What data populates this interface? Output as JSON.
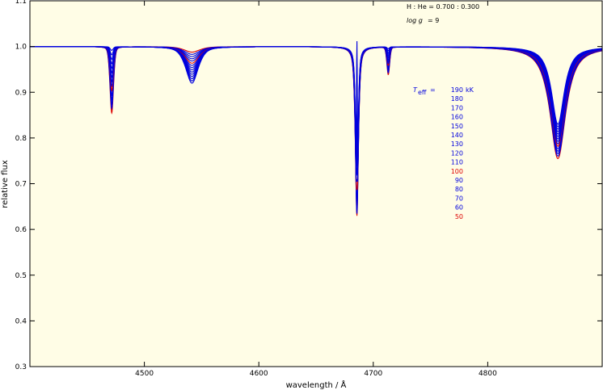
{
  "chart_data": {
    "type": "line",
    "xlabel": "wavelength / Å",
    "ylabel": "relative flux",
    "xlim": [
      4400,
      4900
    ],
    "ylim": [
      0.3,
      1.1
    ],
    "xticks": [
      "4500",
      "4600",
      "4700",
      "4800"
    ],
    "yticks": [
      "0.3",
      "0.4",
      "0.5",
      "0.6",
      "0.7",
      "0.8",
      "0.9",
      "1.0",
      "1.1"
    ],
    "plot_background": "#fffde6",
    "annotations": {
      "composition": "H : He = 0.700 : 0.300",
      "logg_label": "log g",
      "logg_value": "= 9"
    },
    "legend": {
      "symbol": "T",
      "symbol_sub": "eff",
      "equals": "=",
      "unit": "kK",
      "placement": "right-center"
    },
    "series": [
      {
        "name": "190",
        "teff_kK": 190,
        "color": "#0000dd"
      },
      {
        "name": "180",
        "teff_kK": 180,
        "color": "#0000dd"
      },
      {
        "name": "170",
        "teff_kK": 170,
        "color": "#0000dd"
      },
      {
        "name": "160",
        "teff_kK": 160,
        "color": "#0000dd"
      },
      {
        "name": "150",
        "teff_kK": 150,
        "color": "#0000dd"
      },
      {
        "name": "140",
        "teff_kK": 140,
        "color": "#0000dd"
      },
      {
        "name": "130",
        "teff_kK": 130,
        "color": "#0000dd"
      },
      {
        "name": "120",
        "teff_kK": 120,
        "color": "#0000dd"
      },
      {
        "name": "110",
        "teff_kK": 110,
        "color": "#0000dd"
      },
      {
        "name": "100",
        "teff_kK": 100,
        "color": "#dd0000"
      },
      {
        "name": "90",
        "teff_kK": 90,
        "color": "#0000dd"
      },
      {
        "name": "80",
        "teff_kK": 80,
        "color": "#0000dd"
      },
      {
        "name": "70",
        "teff_kK": 70,
        "color": "#0000dd"
      },
      {
        "name": "60",
        "teff_kK": 60,
        "color": "#0000dd"
      },
      {
        "name": "50",
        "teff_kK": 50,
        "color": "#dd0000"
      }
    ],
    "lines": [
      {
        "center": 4471.5,
        "depth_at_50": 0.145,
        "depth_at_190": 0.008,
        "width": 1.3,
        "wing": 0.3
      },
      {
        "center": 4541.6,
        "depth_at_50": 0.012,
        "depth_at_190": 0.08,
        "width": 6.0,
        "wing": 0.6
      },
      {
        "center": 4685.7,
        "depth_at_50": 0.37,
        "depth_at_190": 0.33,
        "width": 1.2,
        "wing": 0.7,
        "core_emission_at_190": 0.15
      },
      {
        "center": 4713.1,
        "depth_at_50": 0.06,
        "depth_at_190": 0.004,
        "width": 1.0,
        "wing": 0.2
      },
      {
        "center": 4861.3,
        "depth_at_50": 0.245,
        "depth_at_190": 0.17,
        "width": 6.5,
        "wing": 0.9
      }
    ]
  }
}
